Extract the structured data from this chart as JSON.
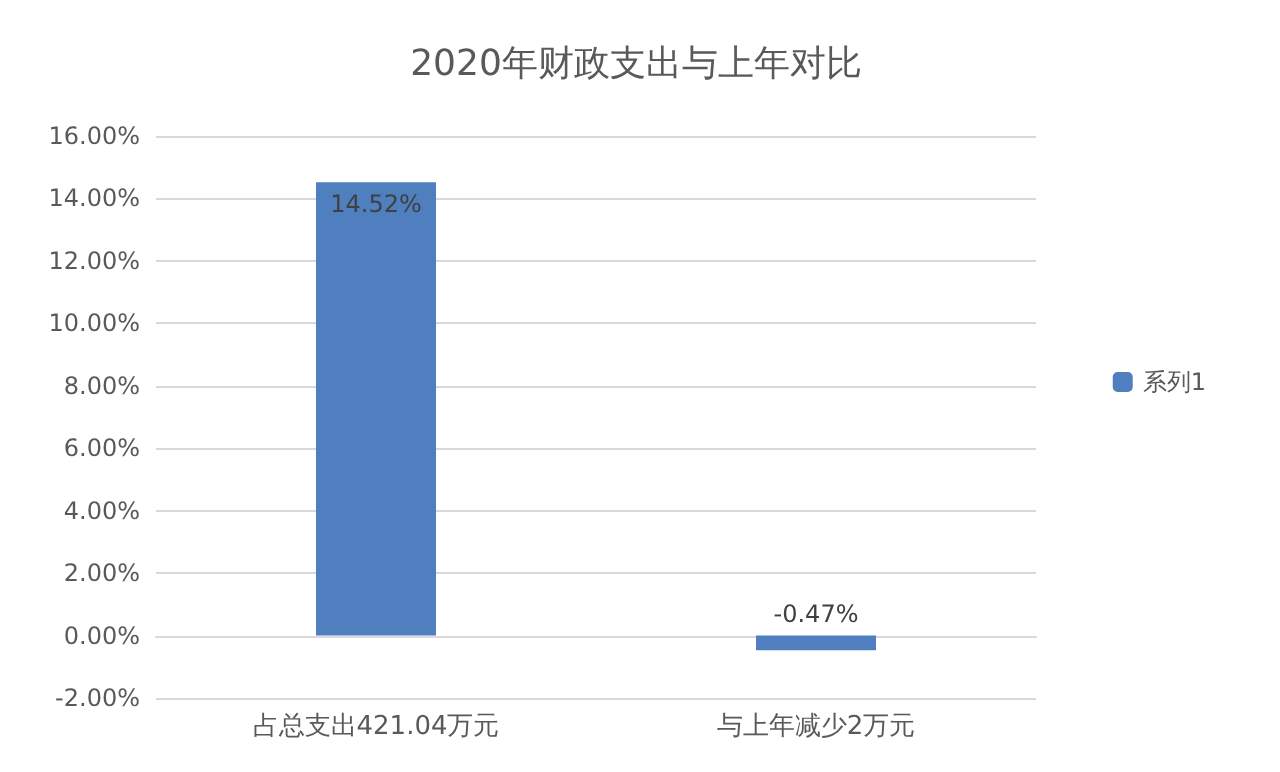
{
  "chart_data": {
    "type": "bar",
    "title": "2020年财政支出与上年对比",
    "categories": [
      "占总支出421.04万元",
      "与上年减少2万元"
    ],
    "series": [
      {
        "name": "系列1",
        "color": "#4f7fbf",
        "values": [
          14.52,
          -0.47
        ],
        "value_labels": [
          "14.52%",
          "-0.47%"
        ]
      }
    ],
    "ylim": [
      -2,
      16
    ],
    "yticks": [
      {
        "value": -2,
        "label": "-2.00%"
      },
      {
        "value": 0,
        "label": "0.00%"
      },
      {
        "value": 2,
        "label": "2.00%"
      },
      {
        "value": 4,
        "label": "4.00%"
      },
      {
        "value": 6,
        "label": "6.00%"
      },
      {
        "value": 8,
        "label": "8.00%"
      },
      {
        "value": 10,
        "label": "10.00%"
      },
      {
        "value": 12,
        "label": "12.00%"
      },
      {
        "value": 14,
        "label": "14.00%"
      },
      {
        "value": 16,
        "label": "16.00%"
      }
    ],
    "grid": "y",
    "legend": "right"
  }
}
